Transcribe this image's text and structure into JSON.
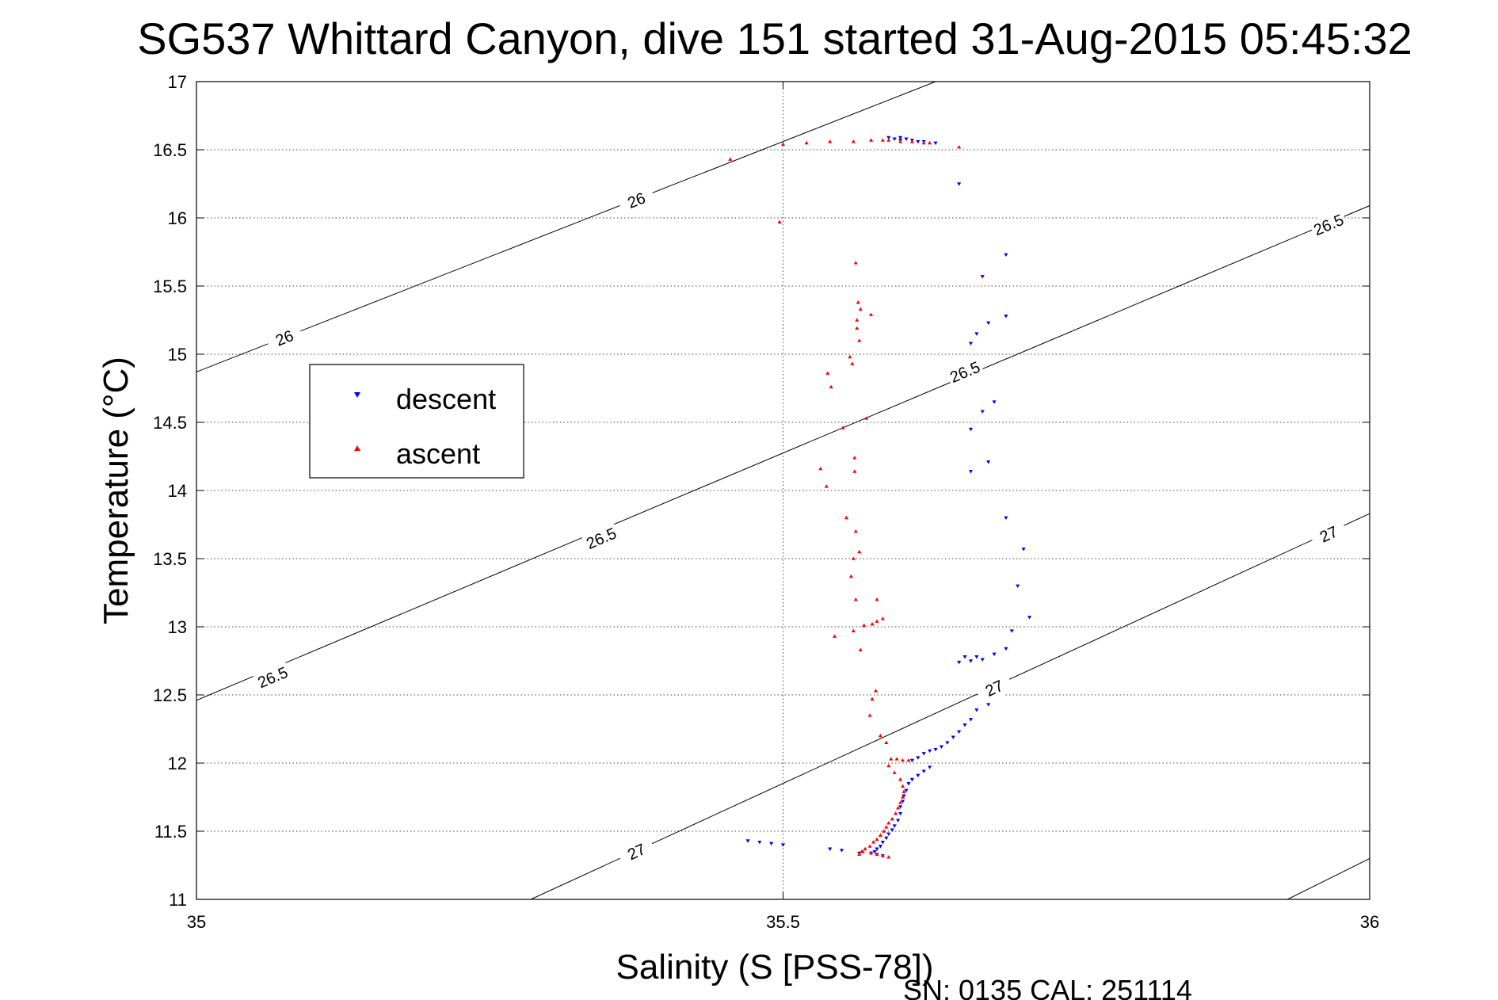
{
  "chart_data": {
    "type": "scatter",
    "title": "SG537 Whittard Canyon, dive 151 started 31-Aug-2015 05:45:32",
    "xlabel": "Salinity (S [PSS-78])",
    "ylabel": "Temperature (°C)",
    "xlim": [
      35,
      36
    ],
    "ylim": [
      11,
      17
    ],
    "xticks": [
      35,
      35.5,
      36
    ],
    "yticks": [
      11,
      11.5,
      12,
      12.5,
      13,
      13.5,
      14,
      14.5,
      15,
      15.5,
      16,
      16.5,
      17
    ],
    "grid": true,
    "grid_style": "dotted",
    "legend_position": "upper-left",
    "footer": "SN: 0135  CAL: 251114",
    "colors": {
      "descent": "#0000ff",
      "ascent": "#ff0000",
      "contour": "#000000"
    },
    "contours": [
      {
        "level": "26",
        "points": [
          [
            35.0,
            14.87
          ],
          [
            35.63,
            17.0
          ]
        ],
        "labels": [
          [
            35.075,
            15.12
          ],
          [
            35.375,
            16.13
          ]
        ]
      },
      {
        "level": "26.5",
        "points": [
          [
            35.0,
            12.46
          ],
          [
            36.0,
            16.09
          ]
        ],
        "labels": [
          [
            35.065,
            12.63
          ],
          [
            35.345,
            13.65
          ],
          [
            35.655,
            14.87
          ],
          [
            35.965,
            15.95
          ]
        ]
      },
      {
        "level": "27",
        "points": [
          [
            35.285,
            11.0
          ],
          [
            36.0,
            13.83
          ]
        ],
        "labels": [
          [
            35.375,
            11.35
          ],
          [
            35.68,
            12.55
          ],
          [
            35.965,
            13.68
          ]
        ]
      },
      {
        "level": "",
        "points": [
          [
            35.93,
            11.0
          ],
          [
            36.0,
            11.3
          ]
        ],
        "labels": []
      }
    ],
    "series": [
      {
        "name": "descent",
        "marker": "triangle-down",
        "points": [
          [
            35.59,
            16.59
          ],
          [
            35.6,
            16.59
          ],
          [
            35.595,
            16.58
          ],
          [
            35.605,
            16.58
          ],
          [
            35.6,
            16.57
          ],
          [
            35.61,
            16.57
          ],
          [
            35.615,
            16.56
          ],
          [
            35.62,
            16.56
          ],
          [
            35.63,
            16.55
          ],
          [
            35.65,
            16.25
          ],
          [
            35.69,
            15.73
          ],
          [
            35.67,
            15.57
          ],
          [
            35.69,
            15.28
          ],
          [
            35.675,
            15.23
          ],
          [
            35.665,
            15.15
          ],
          [
            35.66,
            15.08
          ],
          [
            35.68,
            14.65
          ],
          [
            35.67,
            14.58
          ],
          [
            35.66,
            14.45
          ],
          [
            35.675,
            14.21
          ],
          [
            35.66,
            14.14
          ],
          [
            35.69,
            13.8
          ],
          [
            35.705,
            13.57
          ],
          [
            35.7,
            13.3
          ],
          [
            35.71,
            13.07
          ],
          [
            35.695,
            12.97
          ],
          [
            35.69,
            12.84
          ],
          [
            35.68,
            12.8
          ],
          [
            35.665,
            12.78
          ],
          [
            35.655,
            12.78
          ],
          [
            35.67,
            12.76
          ],
          [
            35.66,
            12.75
          ],
          [
            35.65,
            12.74
          ],
          [
            35.675,
            12.43
          ],
          [
            35.665,
            12.39
          ],
          [
            35.66,
            12.32
          ],
          [
            35.655,
            12.28
          ],
          [
            35.65,
            12.23
          ],
          [
            35.645,
            12.19
          ],
          [
            35.64,
            12.15
          ],
          [
            35.635,
            12.12
          ],
          [
            35.63,
            12.1
          ],
          [
            35.625,
            12.09
          ],
          [
            35.62,
            12.07
          ],
          [
            35.615,
            12.04
          ],
          [
            35.61,
            12.02
          ],
          [
            35.625,
            11.97
          ],
          [
            35.62,
            11.94
          ],
          [
            35.615,
            11.91
          ],
          [
            35.61,
            11.88
          ],
          [
            35.607,
            11.85
          ],
          [
            35.605,
            11.8
          ],
          [
            35.603,
            11.76
          ],
          [
            35.602,
            11.72
          ],
          [
            35.6,
            11.68
          ],
          [
            35.6,
            11.63
          ],
          [
            35.598,
            11.58
          ],
          [
            35.595,
            11.54
          ],
          [
            35.593,
            11.51
          ],
          [
            35.59,
            11.48
          ],
          [
            35.588,
            11.45
          ],
          [
            35.585,
            11.42
          ],
          [
            35.583,
            11.39
          ],
          [
            35.58,
            11.37
          ],
          [
            35.578,
            11.35
          ],
          [
            35.575,
            11.34
          ],
          [
            35.58,
            11.33
          ],
          [
            35.585,
            11.32
          ],
          [
            35.47,
            11.43
          ],
          [
            35.48,
            11.42
          ],
          [
            35.49,
            11.41
          ],
          [
            35.5,
            11.4
          ],
          [
            35.54,
            11.37
          ],
          [
            35.55,
            11.36
          ],
          [
            35.565,
            11.34
          ]
        ]
      },
      {
        "name": "ascent",
        "marker": "triangle-up",
        "points": [
          [
            35.455,
            16.43
          ],
          [
            35.5,
            16.54
          ],
          [
            35.52,
            16.55
          ],
          [
            35.54,
            16.56
          ],
          [
            35.56,
            16.56
          ],
          [
            35.575,
            16.57
          ],
          [
            35.585,
            16.57
          ],
          [
            35.59,
            16.57
          ],
          [
            35.6,
            16.56
          ],
          [
            35.61,
            16.56
          ],
          [
            35.62,
            16.55
          ],
          [
            35.625,
            16.55
          ],
          [
            35.65,
            16.52
          ],
          [
            35.497,
            15.97
          ],
          [
            35.562,
            15.67
          ],
          [
            35.564,
            15.38
          ],
          [
            35.566,
            15.33
          ],
          [
            35.575,
            15.29
          ],
          [
            35.563,
            15.25
          ],
          [
            35.563,
            15.19
          ],
          [
            35.565,
            15.1
          ],
          [
            35.557,
            14.98
          ],
          [
            35.559,
            14.93
          ],
          [
            35.538,
            14.86
          ],
          [
            35.541,
            14.76
          ],
          [
            35.571,
            14.53
          ],
          [
            35.551,
            14.46
          ],
          [
            35.561,
            14.24
          ],
          [
            35.561,
            14.14
          ],
          [
            35.532,
            14.16
          ],
          [
            35.537,
            14.03
          ],
          [
            35.554,
            13.8
          ],
          [
            35.562,
            13.7
          ],
          [
            35.565,
            13.55
          ],
          [
            35.56,
            13.5
          ],
          [
            35.558,
            13.37
          ],
          [
            35.562,
            13.2
          ],
          [
            35.58,
            13.2
          ],
          [
            35.585,
            13.06
          ],
          [
            35.58,
            13.04
          ],
          [
            35.576,
            13.02
          ],
          [
            35.569,
            13.01
          ],
          [
            35.56,
            12.97
          ],
          [
            35.544,
            12.93
          ],
          [
            35.566,
            12.83
          ],
          [
            35.579,
            12.53
          ],
          [
            35.576,
            12.47
          ],
          [
            35.574,
            12.35
          ],
          [
            35.583,
            12.2
          ],
          [
            35.588,
            12.15
          ],
          [
            35.592,
            12.03
          ],
          [
            35.597,
            12.03
          ],
          [
            35.602,
            12.02
          ],
          [
            35.607,
            12.02
          ],
          [
            35.59,
            11.98
          ],
          [
            35.595,
            11.93
          ],
          [
            35.6,
            11.88
          ],
          [
            35.602,
            11.83
          ],
          [
            35.603,
            11.79
          ],
          [
            35.602,
            11.75
          ],
          [
            35.6,
            11.71
          ],
          [
            35.598,
            11.67
          ],
          [
            35.596,
            11.63
          ],
          [
            35.593,
            11.59
          ],
          [
            35.59,
            11.56
          ],
          [
            35.588,
            11.53
          ],
          [
            35.586,
            11.5
          ],
          [
            35.583,
            11.47
          ],
          [
            35.58,
            11.44
          ],
          [
            35.577,
            11.42
          ],
          [
            35.574,
            11.39
          ],
          [
            35.57,
            11.37
          ],
          [
            35.567,
            11.35
          ],
          [
            35.58,
            11.33
          ],
          [
            35.585,
            11.32
          ],
          [
            35.59,
            11.31
          ],
          [
            35.575,
            11.34
          ],
          [
            35.568,
            11.35
          ],
          [
            35.565,
            11.33
          ]
        ]
      }
    ]
  }
}
